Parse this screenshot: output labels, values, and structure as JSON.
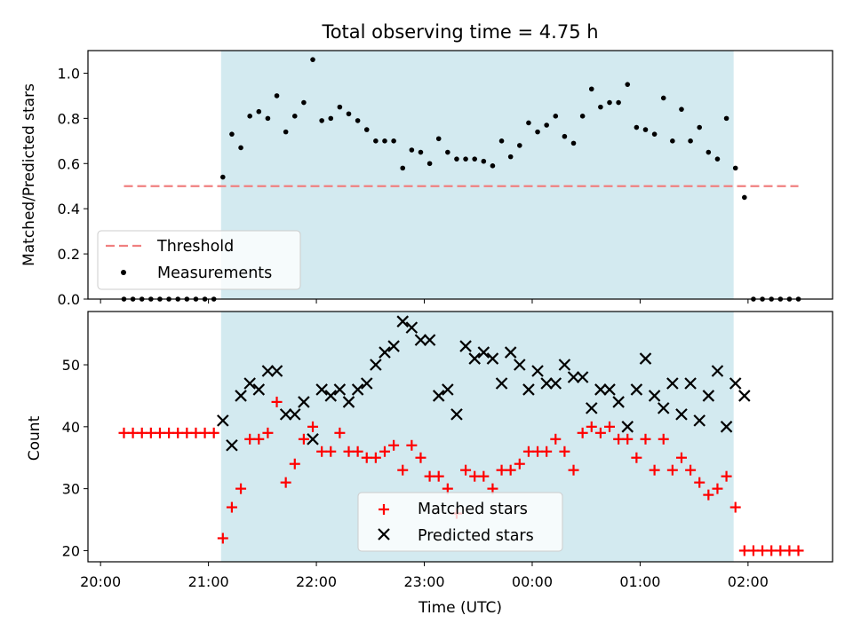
{
  "chart_data": [
    {
      "type": "scatter",
      "title": "Total observing time = 4.75 h",
      "xlabel": "",
      "ylabel": "Matched/Predicted stars",
      "ylim": [
        0,
        1.1
      ],
      "yticks": [
        "0.0",
        "0.2",
        "0.4",
        "0.6",
        "0.8",
        "1.0"
      ],
      "xlim": [
        "19:53",
        "02:47"
      ],
      "x_time_offset_note": "",
      "shaded_interval": [
        "21:07",
        "01:52"
      ],
      "shade_color": "#d3eaf0",
      "threshold": {
        "name": "Threshold",
        "value": 0.5,
        "x_range": [
          "20:13",
          "02:28"
        ],
        "color": "#f08080"
      },
      "legend": {
        "placement": "lower left",
        "entries": [
          "Threshold",
          "Measurements"
        ]
      },
      "series": [
        {
          "name": "Measurements",
          "color": "#000000",
          "marker": "dot",
          "points": [
            [
              "20:13",
              0
            ],
            [
              "20:18",
              0
            ],
            [
              "20:23",
              0
            ],
            [
              "20:28",
              0
            ],
            [
              "20:33",
              0
            ],
            [
              "20:38",
              0
            ],
            [
              "20:43",
              0
            ],
            [
              "20:48",
              0
            ],
            [
              "20:53",
              0
            ],
            [
              "20:58",
              0
            ],
            [
              "21:03",
              0
            ],
            [
              "21:08",
              0.54
            ],
            [
              "21:13",
              0.73
            ],
            [
              "21:18",
              0.67
            ],
            [
              "21:23",
              0.81
            ],
            [
              "21:28",
              0.83
            ],
            [
              "21:33",
              0.8
            ],
            [
              "21:38",
              0.9
            ],
            [
              "21:43",
              0.74
            ],
            [
              "21:48",
              0.81
            ],
            [
              "21:53",
              0.87
            ],
            [
              "21:58",
              1.06
            ],
            [
              "22:03",
              0.79
            ],
            [
              "22:08",
              0.8
            ],
            [
              "22:13",
              0.85
            ],
            [
              "22:18",
              0.82
            ],
            [
              "22:23",
              0.79
            ],
            [
              "22:28",
              0.75
            ],
            [
              "22:33",
              0.7
            ],
            [
              "22:38",
              0.7
            ],
            [
              "22:43",
              0.7
            ],
            [
              "22:48",
              0.58
            ],
            [
              "22:53",
              0.66
            ],
            [
              "22:58",
              0.65
            ],
            [
              "23:03",
              0.6
            ],
            [
              "23:08",
              0.71
            ],
            [
              "23:13",
              0.65
            ],
            [
              "23:18",
              0.62
            ],
            [
              "23:23",
              0.62
            ],
            [
              "23:28",
              0.62
            ],
            [
              "23:33",
              0.61
            ],
            [
              "23:38",
              0.59
            ],
            [
              "23:43",
              0.7
            ],
            [
              "23:48",
              0.63
            ],
            [
              "23:53",
              0.68
            ],
            [
              "23:58",
              0.78
            ],
            [
              "00:03",
              0.74
            ],
            [
              "00:08",
              0.77
            ],
            [
              "00:13",
              0.81
            ],
            [
              "00:18",
              0.72
            ],
            [
              "00:23",
              0.69
            ],
            [
              "00:28",
              0.81
            ],
            [
              "00:33",
              0.93
            ],
            [
              "00:38",
              0.85
            ],
            [
              "00:43",
              0.87
            ],
            [
              "00:48",
              0.87
            ],
            [
              "00:53",
              0.95
            ],
            [
              "00:58",
              0.76
            ],
            [
              "01:03",
              0.75
            ],
            [
              "01:08",
              0.73
            ],
            [
              "01:13",
              0.89
            ],
            [
              "01:18",
              0.7
            ],
            [
              "01:23",
              0.84
            ],
            [
              "01:28",
              0.7
            ],
            [
              "01:33",
              0.76
            ],
            [
              "01:38",
              0.65
            ],
            [
              "01:43",
              0.62
            ],
            [
              "01:48",
              0.8
            ],
            [
              "01:53",
              0.58
            ],
            [
              "01:58",
              0.45
            ],
            [
              "02:03",
              0
            ],
            [
              "02:08",
              0
            ],
            [
              "02:13",
              0
            ],
            [
              "02:18",
              0
            ],
            [
              "02:23",
              0
            ],
            [
              "02:28",
              0
            ]
          ]
        }
      ]
    },
    {
      "type": "scatter",
      "title": "",
      "xlabel": "Time (UTC)",
      "ylabel": "Count",
      "ylim": [
        18.2,
        58.6
      ],
      "yticks": [
        "20",
        "30",
        "40",
        "50"
      ],
      "xlim": [
        "19:53",
        "02:47"
      ],
      "xticks": [
        "20:00",
        "21:00",
        "22:00",
        "23:00",
        "00:00",
        "01:00",
        "02:00"
      ],
      "shaded_interval": [
        "21:07",
        "01:52"
      ],
      "legend": {
        "placement": "lower center",
        "entries": [
          "Matched stars",
          "Predicted stars"
        ]
      },
      "series": [
        {
          "name": "Matched stars",
          "color": "#ff0000",
          "marker": "plus",
          "points": [
            [
              "20:13",
              39
            ],
            [
              "20:18",
              39
            ],
            [
              "20:23",
              39
            ],
            [
              "20:28",
              39
            ],
            [
              "20:33",
              39
            ],
            [
              "20:38",
              39
            ],
            [
              "20:43",
              39
            ],
            [
              "20:48",
              39
            ],
            [
              "20:53",
              39
            ],
            [
              "20:58",
              39
            ],
            [
              "21:03",
              39
            ],
            [
              "21:08",
              22
            ],
            [
              "21:13",
              27
            ],
            [
              "21:18",
              30
            ],
            [
              "21:23",
              38
            ],
            [
              "21:28",
              38
            ],
            [
              "21:33",
              39
            ],
            [
              "21:38",
              44
            ],
            [
              "21:43",
              31
            ],
            [
              "21:48",
              34
            ],
            [
              "21:53",
              38
            ],
            [
              "21:58",
              40
            ],
            [
              "22:03",
              36
            ],
            [
              "22:08",
              36
            ],
            [
              "22:13",
              39
            ],
            [
              "22:18",
              36
            ],
            [
              "22:23",
              36
            ],
            [
              "22:28",
              35
            ],
            [
              "22:33",
              35
            ],
            [
              "22:38",
              36
            ],
            [
              "22:43",
              37
            ],
            [
              "22:48",
              33
            ],
            [
              "22:53",
              37
            ],
            [
              "22:58",
              35
            ],
            [
              "23:03",
              32
            ],
            [
              "23:08",
              32
            ],
            [
              "23:13",
              30
            ],
            [
              "23:18",
              26
            ],
            [
              "23:23",
              33
            ],
            [
              "23:28",
              32
            ],
            [
              "23:33",
              32
            ],
            [
              "23:38",
              30
            ],
            [
              "23:43",
              33
            ],
            [
              "23:48",
              33
            ],
            [
              "23:53",
              34
            ],
            [
              "23:58",
              36
            ],
            [
              "00:03",
              36
            ],
            [
              "00:08",
              36
            ],
            [
              "00:13",
              38
            ],
            [
              "00:18",
              36
            ],
            [
              "00:23",
              33
            ],
            [
              "00:28",
              39
            ],
            [
              "00:33",
              40
            ],
            [
              "00:38",
              39
            ],
            [
              "00:43",
              40
            ],
            [
              "00:48",
              38
            ],
            [
              "00:53",
              38
            ],
            [
              "00:58",
              35
            ],
            [
              "01:03",
              38
            ],
            [
              "01:08",
              33
            ],
            [
              "01:13",
              38
            ],
            [
              "01:18",
              33
            ],
            [
              "01:23",
              35
            ],
            [
              "01:28",
              33
            ],
            [
              "01:33",
              31
            ],
            [
              "01:38",
              29
            ],
            [
              "01:43",
              30
            ],
            [
              "01:48",
              32
            ],
            [
              "01:53",
              27
            ],
            [
              "01:58",
              20
            ],
            [
              "02:03",
              20
            ],
            [
              "02:08",
              20
            ],
            [
              "02:13",
              20
            ],
            [
              "02:18",
              20
            ],
            [
              "02:23",
              20
            ],
            [
              "02:28",
              20
            ]
          ]
        },
        {
          "name": "Predicted stars",
          "color": "#000000",
          "marker": "x",
          "points": [
            [
              "21:08",
              41
            ],
            [
              "21:13",
              37
            ],
            [
              "21:18",
              45
            ],
            [
              "21:23",
              47
            ],
            [
              "21:28",
              46
            ],
            [
              "21:33",
              49
            ],
            [
              "21:38",
              49
            ],
            [
              "21:43",
              42
            ],
            [
              "21:48",
              42
            ],
            [
              "21:53",
              44
            ],
            [
              "21:58",
              38
            ],
            [
              "22:03",
              46
            ],
            [
              "22:08",
              45
            ],
            [
              "22:13",
              46
            ],
            [
              "22:18",
              44
            ],
            [
              "22:23",
              46
            ],
            [
              "22:28",
              47
            ],
            [
              "22:33",
              50
            ],
            [
              "22:38",
              52
            ],
            [
              "22:43",
              53
            ],
            [
              "22:48",
              57
            ],
            [
              "22:53",
              56
            ],
            [
              "22:58",
              54
            ],
            [
              "23:03",
              54
            ],
            [
              "23:08",
              45
            ],
            [
              "23:13",
              46
            ],
            [
              "23:18",
              42
            ],
            [
              "23:23",
              53
            ],
            [
              "23:28",
              51
            ],
            [
              "23:33",
              52
            ],
            [
              "23:38",
              51
            ],
            [
              "23:43",
              47
            ],
            [
              "23:48",
              52
            ],
            [
              "23:53",
              50
            ],
            [
              "23:58",
              46
            ],
            [
              "00:03",
              49
            ],
            [
              "00:08",
              47
            ],
            [
              "00:13",
              47
            ],
            [
              "00:18",
              50
            ],
            [
              "00:23",
              48
            ],
            [
              "00:28",
              48
            ],
            [
              "00:33",
              43
            ],
            [
              "00:38",
              46
            ],
            [
              "00:43",
              46
            ],
            [
              "00:48",
              44
            ],
            [
              "00:53",
              40
            ],
            [
              "00:58",
              46
            ],
            [
              "01:03",
              51
            ],
            [
              "01:08",
              45
            ],
            [
              "01:13",
              43
            ],
            [
              "01:18",
              47
            ],
            [
              "01:23",
              42
            ],
            [
              "01:28",
              47
            ],
            [
              "01:33",
              41
            ],
            [
              "01:38",
              45
            ],
            [
              "01:43",
              49
            ],
            [
              "01:48",
              40
            ],
            [
              "01:53",
              47
            ],
            [
              "01:58",
              45
            ]
          ]
        }
      ]
    }
  ]
}
